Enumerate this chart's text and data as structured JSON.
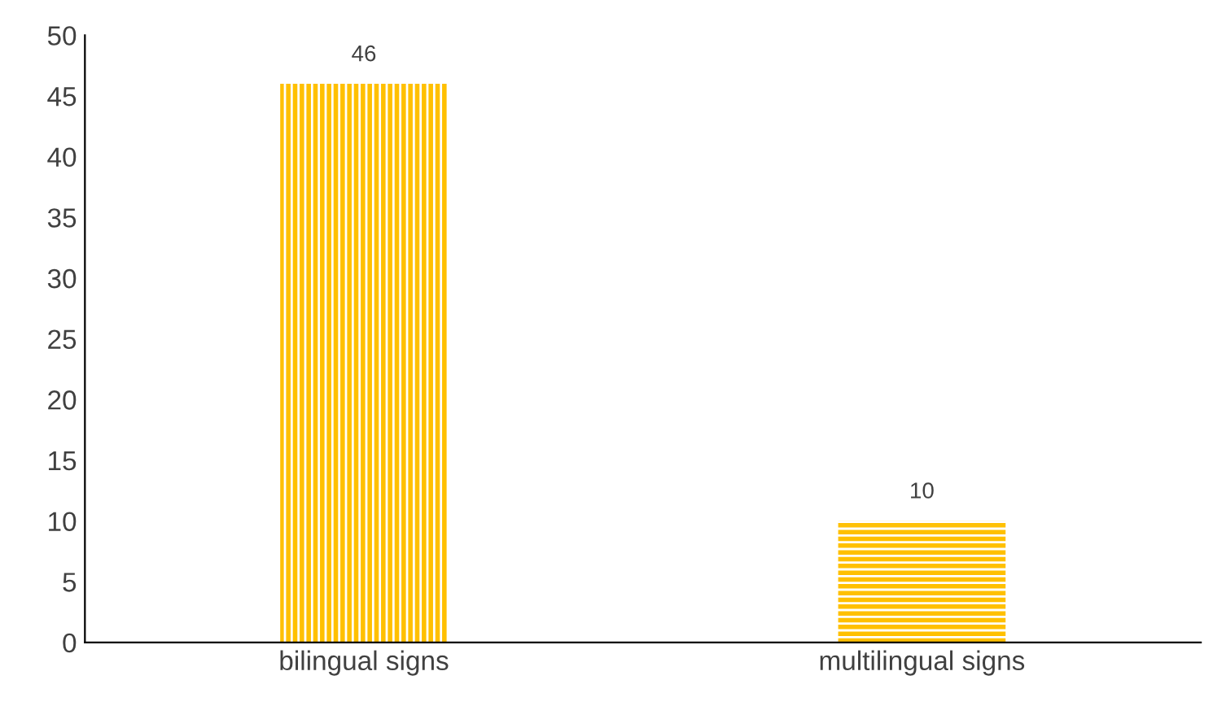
{
  "chart_data": {
    "type": "bar",
    "categories": [
      "bilingual signs",
      "multilingual signs"
    ],
    "values": [
      46,
      10
    ],
    "colors": [
      "#ffc000",
      "#ffc000"
    ],
    "ylim": [
      0,
      50
    ],
    "yticks": [
      0,
      5,
      10,
      15,
      20,
      25,
      30,
      35,
      40,
      45,
      50
    ],
    "data_labels": true,
    "grid": false,
    "legend": false
  }
}
